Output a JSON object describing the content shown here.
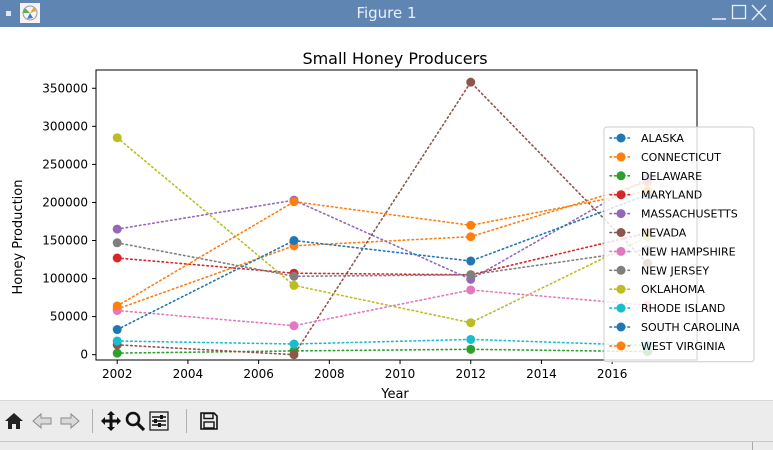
{
  "window": {
    "title": "Figure 1"
  },
  "toolbar": {
    "buttons": [
      {
        "name": "home-button",
        "icon": "home-icon"
      },
      {
        "name": "back-button",
        "icon": "arrow-left-icon"
      },
      {
        "name": "forward-button",
        "icon": "arrow-right-icon"
      },
      {
        "name": "pan-button",
        "icon": "move-icon"
      },
      {
        "name": "zoom-button",
        "icon": "magnifier-icon"
      },
      {
        "name": "configure-subplots-button",
        "icon": "sliders-icon"
      },
      {
        "name": "save-button",
        "icon": "floppy-disk-icon"
      }
    ]
  },
  "chart_data": {
    "type": "line",
    "title": "Small Honey Producers",
    "xlabel": "Year",
    "ylabel": "Honey Production",
    "xlim": [
      2001.4,
      2018.4
    ],
    "ylim": [
      -7000,
      374000
    ],
    "xticks": [
      2002,
      2004,
      2006,
      2008,
      2010,
      2012,
      2014,
      2016
    ],
    "yticks": [
      0,
      50000,
      100000,
      150000,
      200000,
      250000,
      300000,
      350000
    ],
    "ytick_labels": [
      "0",
      "50000",
      "100000",
      "150000",
      "200000",
      "250000",
      "300000",
      "350000"
    ],
    "line_style": "dotted",
    "marker": "circle",
    "grid": false,
    "legend_position": "right",
    "x": [
      2002,
      2007,
      2012,
      2017
    ],
    "series": [
      {
        "name": "ALASKA",
        "color": "#1f77b4",
        "values": [
          null,
          null,
          null,
          null
        ]
      },
      {
        "name": "CONNECTICUT",
        "color": "#ff7f0e",
        "values": [
          60000,
          143000,
          155000,
          227000
        ]
      },
      {
        "name": "DELAWARE",
        "color": "#2ca02c",
        "values": [
          2000,
          5000,
          7000,
          4000
        ]
      },
      {
        "name": "MARYLAND",
        "color": "#d62728",
        "values": [
          127000,
          107000,
          105000,
          160000
        ]
      },
      {
        "name": "MASSACHUSETTS",
        "color": "#9467bd",
        "values": [
          165000,
          203000,
          99000,
          232000
        ]
      },
      {
        "name": "NEVADA",
        "color": "#8c564b",
        "values": [
          13000,
          0,
          358000,
          120000
        ]
      },
      {
        "name": "NEW HAMPSHIRE",
        "color": "#e377c2",
        "values": [
          58000,
          38000,
          85000,
          65000
        ]
      },
      {
        "name": "NEW JERSEY",
        "color": "#7f7f7f",
        "values": [
          147000,
          103000,
          105000,
          138000
        ]
      },
      {
        "name": "OKLAHOMA",
        "color": "#bcbd22",
        "values": [
          285000,
          91000,
          42000,
          155000
        ]
      },
      {
        "name": "RHODE ISLAND",
        "color": "#17becf",
        "values": [
          18000,
          14000,
          20000,
          12000
        ]
      },
      {
        "name": "SOUTH CAROLINA",
        "color": "#1f77b4",
        "values": [
          33000,
          150000,
          123000,
          210000
        ]
      },
      {
        "name": "WEST VIRGINIA",
        "color": "#ff7f0e",
        "values": [
          64000,
          201000,
          170000,
          215000
        ]
      }
    ]
  }
}
